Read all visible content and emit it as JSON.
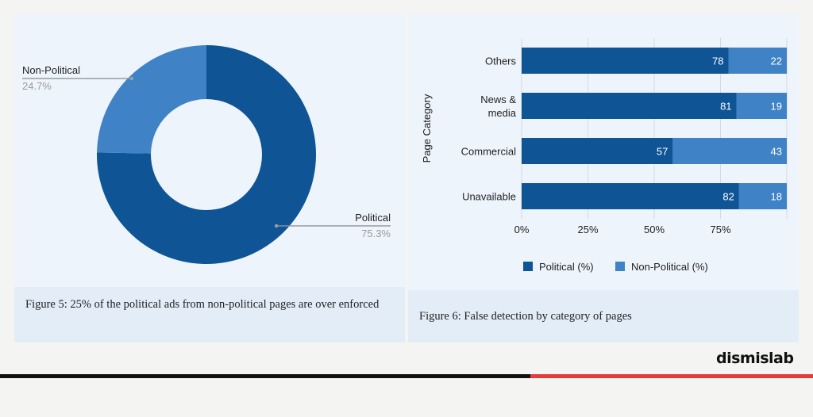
{
  "colors": {
    "political": "#0f5495",
    "non_political": "#3f82c6",
    "brand_accent": "#e63b3b"
  },
  "figure5": {
    "caption": "Figure 5: 25% of the political ads from non-political pages are over enforced"
  },
  "figure6": {
    "caption": "Figure 6:  False detection by category of pages"
  },
  "brand": {
    "name": "dismislab"
  },
  "chart_data": [
    {
      "type": "pie",
      "donut": true,
      "categories": [
        "Political",
        "Non-Political"
      ],
      "values": [
        75.3,
        24.7
      ],
      "value_labels": [
        "75.3%",
        "24.7%"
      ],
      "colors": [
        "#0f5495",
        "#3f82c6"
      ]
    },
    {
      "type": "bar",
      "orientation": "horizontal",
      "stacked": true,
      "categories": [
        "Others",
        "News & media",
        "Commercial",
        "Unavailable"
      ],
      "category_lines": [
        [
          "Others"
        ],
        [
          "News &",
          "media"
        ],
        [
          "Commercial"
        ],
        [
          "Unavailable"
        ]
      ],
      "series": [
        {
          "name": "Political (%)",
          "values": [
            78,
            81,
            57,
            82
          ],
          "color": "#0f5495"
        },
        {
          "name": "Non-Political (%)",
          "values": [
            22,
            19,
            43,
            18
          ],
          "color": "#3f82c6"
        }
      ],
      "ylabel": "Page Category",
      "xlim": [
        0,
        100
      ],
      "xticks": [
        0,
        25,
        50,
        75
      ],
      "xtick_labels": [
        "0%",
        "25%",
        "50%",
        "75%"
      ],
      "grid": true,
      "legend_position": "bottom"
    }
  ]
}
